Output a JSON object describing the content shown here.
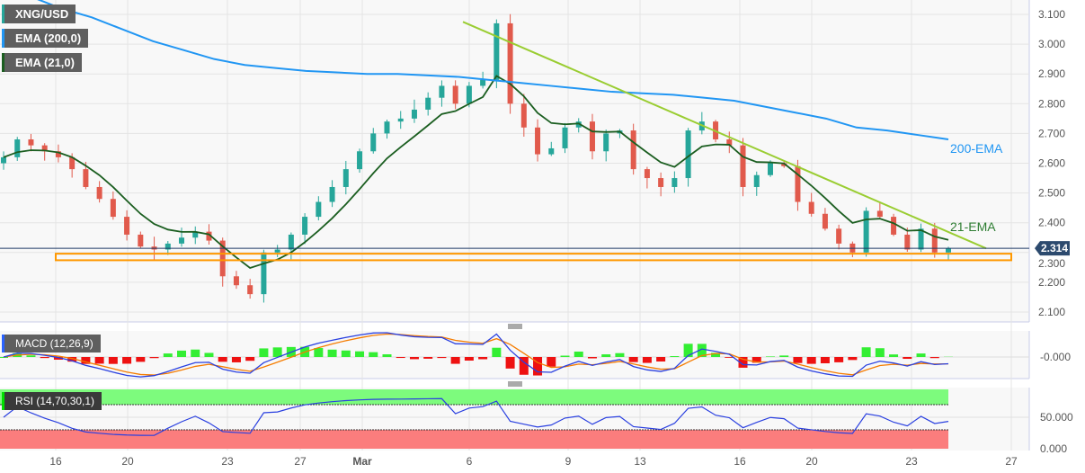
{
  "chart_data": {
    "type": "candlestick",
    "symbol": "XNG/USD",
    "legends": [
      {
        "label": "XNG/USD",
        "color": "#26a69a"
      },
      {
        "label": "EMA (200,0)",
        "color": "#2196f3"
      },
      {
        "label": "EMA (21,0)",
        "color": "#1b5e20"
      }
    ],
    "price_ticks": [
      "3.100",
      "3.000",
      "2.900",
      "2.800",
      "2.700",
      "2.600",
      "2.500",
      "2.400",
      "2.300",
      "2.200",
      "2.100"
    ],
    "ylim": [
      2.1,
      3.1
    ],
    "x_ticks": [
      "16",
      "20",
      "23",
      "27",
      "Mar",
      "6",
      "9",
      "13",
      "16",
      "20",
      "23",
      "27"
    ],
    "closes": [
      2.62,
      2.68,
      2.66,
      2.64,
      2.62,
      2.58,
      2.52,
      2.48,
      2.42,
      2.36,
      2.32,
      2.31,
      2.33,
      2.35,
      2.37,
      2.34,
      2.22,
      2.19,
      2.16,
      2.3,
      2.31,
      2.36,
      2.42,
      2.47,
      2.52,
      2.58,
      2.64,
      2.7,
      2.74,
      2.75,
      2.78,
      2.82,
      2.86,
      2.8,
      2.86,
      2.88,
      3.07,
      2.8,
      2.72,
      2.63,
      2.65,
      2.72,
      2.74,
      2.64,
      2.7,
      2.71,
      2.58,
      2.55,
      2.52,
      2.55,
      2.71,
      2.74,
      2.68,
      2.66,
      2.52,
      2.56,
      2.6,
      2.59,
      2.47,
      2.43,
      2.38,
      2.33,
      2.3,
      2.44,
      2.42,
      2.36,
      2.31,
      2.38,
      2.3,
      2.314
    ],
    "ema200": [
      3.2,
      3.16,
      3.12,
      3.09,
      3.05,
      3.01,
      2.98,
      2.95,
      2.93,
      2.92,
      2.91,
      2.905,
      2.9,
      2.9,
      2.895,
      2.89,
      2.88,
      2.87,
      2.86,
      2.85,
      2.84,
      2.835,
      2.83,
      2.82,
      2.81,
      2.79,
      2.77,
      2.75,
      2.72,
      2.71,
      2.695,
      2.68
    ],
    "current_price": "2.314",
    "current_price_value": 2.314,
    "support_zone": [
      2.274,
      2.296
    ],
    "trendline": {
      "start": 3.075,
      "end": 2.314
    },
    "annotations": {
      "ema200": "200-EMA",
      "ema21": "21-EMA"
    },
    "macd": {
      "label": "MACD (12,26,9)",
      "tick": "-0.000"
    },
    "rsi": {
      "label": "RSI (14,70,30,1)",
      "ticks": [
        "50.000",
        "0.000"
      ],
      "upper": 70,
      "lower": 30
    }
  }
}
